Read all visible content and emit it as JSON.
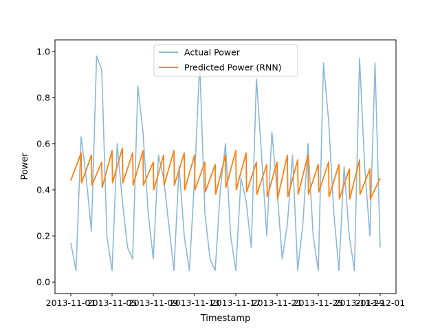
{
  "chart_data": {
    "type": "line",
    "xlabel": "Timestamp",
    "ylabel": "Power",
    "xlim": [
      "2013-11-01",
      "2013-12-01"
    ],
    "ylim": [
      -0.05,
      1.05
    ],
    "x_ticks": [
      "2013-11-01",
      "2013-11-05",
      "2013-11-09",
      "2013-11-13",
      "2013-11-17",
      "2013-11-21",
      "2013-11-25",
      "2013-11-29",
      "2013-12-01"
    ],
    "y_ticks": [
      "0.0",
      "0.2",
      "0.4",
      "0.6",
      "0.8",
      "1.0"
    ],
    "legend_position": "top-center",
    "series": [
      {
        "name": "Actual Power",
        "color": "#8ab8d8",
        "x": [
          "2013-11-01",
          "2013-11-01T12",
          "2013-11-02",
          "2013-11-02T12",
          "2013-11-03",
          "2013-11-03T12",
          "2013-11-04",
          "2013-11-04T12",
          "2013-11-05",
          "2013-11-05T12",
          "2013-11-06",
          "2013-11-06T12",
          "2013-11-07",
          "2013-11-07T12",
          "2013-11-08",
          "2013-11-08T12",
          "2013-11-09",
          "2013-11-09T12",
          "2013-11-10",
          "2013-11-10T12",
          "2013-11-11",
          "2013-11-11T12",
          "2013-11-12",
          "2013-11-12T12",
          "2013-11-13",
          "2013-11-13T12",
          "2013-11-14",
          "2013-11-14T12",
          "2013-11-15",
          "2013-11-15T12",
          "2013-11-16",
          "2013-11-16T12",
          "2013-11-17",
          "2013-11-17T12",
          "2013-11-18",
          "2013-11-18T12",
          "2013-11-19",
          "2013-11-19T12",
          "2013-11-20",
          "2013-11-20T12",
          "2013-11-21",
          "2013-11-21T12",
          "2013-11-22",
          "2013-11-22T12",
          "2013-11-23",
          "2013-11-23T12",
          "2013-11-24",
          "2013-11-24T12",
          "2013-11-25",
          "2013-11-25T12",
          "2013-11-26",
          "2013-11-26T12",
          "2013-11-27",
          "2013-11-27T12",
          "2013-11-28",
          "2013-11-28T12",
          "2013-11-29",
          "2013-11-29T12",
          "2013-11-30",
          "2013-11-30T12",
          "2013-12-01"
        ],
        "values": [
          0.17,
          0.05,
          0.63,
          0.45,
          0.22,
          0.98,
          0.92,
          0.2,
          0.05,
          0.6,
          0.35,
          0.15,
          0.1,
          0.85,
          0.65,
          0.3,
          0.1,
          0.55,
          0.45,
          0.25,
          0.05,
          0.5,
          0.2,
          0.05,
          0.45,
          0.95,
          0.3,
          0.1,
          0.05,
          0.4,
          0.6,
          0.2,
          0.05,
          0.45,
          0.35,
          0.15,
          0.88,
          0.55,
          0.2,
          0.65,
          0.4,
          0.1,
          0.25,
          0.55,
          0.05,
          0.25,
          0.6,
          0.2,
          0.05,
          0.95,
          0.7,
          0.3,
          0.05,
          0.5,
          0.2,
          0.05,
          0.97,
          0.5,
          0.2,
          0.95,
          0.15
        ]
      },
      {
        "name": "Predicted Power (RNN)",
        "color": "#ff7f0e",
        "x": [
          "2013-11-01",
          "2013-11-02",
          "2013-11-02T01",
          "2013-11-03",
          "2013-11-03T01",
          "2013-11-04",
          "2013-11-04T01",
          "2013-11-05",
          "2013-11-05T01",
          "2013-11-06",
          "2013-11-06T01",
          "2013-11-07",
          "2013-11-07T01",
          "2013-11-08",
          "2013-11-08T01",
          "2013-11-09",
          "2013-11-09T01",
          "2013-11-10",
          "2013-11-10T01",
          "2013-11-11",
          "2013-11-11T01",
          "2013-11-12",
          "2013-11-12T01",
          "2013-11-13",
          "2013-11-13T01",
          "2013-11-14",
          "2013-11-14T01",
          "2013-11-15",
          "2013-11-15T01",
          "2013-11-16",
          "2013-11-16T01",
          "2013-11-17",
          "2013-11-17T01",
          "2013-11-18",
          "2013-11-18T01",
          "2013-11-19",
          "2013-11-19T01",
          "2013-11-20",
          "2013-11-20T01",
          "2013-11-21",
          "2013-11-21T01",
          "2013-11-22",
          "2013-11-22T01",
          "2013-11-23",
          "2013-11-23T01",
          "2013-11-24",
          "2013-11-24T01",
          "2013-11-25",
          "2013-11-25T01",
          "2013-11-26",
          "2013-11-26T01",
          "2013-11-27",
          "2013-11-27T01",
          "2013-11-28",
          "2013-11-28T01",
          "2013-11-29",
          "2013-11-29T01",
          "2013-11-30",
          "2013-11-30T01",
          "2013-12-01"
        ],
        "values": [
          0.44,
          0.56,
          0.43,
          0.55,
          0.42,
          0.52,
          0.41,
          0.57,
          0.43,
          0.58,
          0.43,
          0.56,
          0.42,
          0.57,
          0.42,
          0.52,
          0.4,
          0.55,
          0.42,
          0.57,
          0.42,
          0.56,
          0.4,
          0.55,
          0.4,
          0.52,
          0.39,
          0.51,
          0.38,
          0.55,
          0.41,
          0.57,
          0.4,
          0.56,
          0.39,
          0.52,
          0.38,
          0.51,
          0.37,
          0.52,
          0.36,
          0.55,
          0.37,
          0.53,
          0.38,
          0.55,
          0.38,
          0.51,
          0.39,
          0.52,
          0.37,
          0.51,
          0.36,
          0.49,
          0.36,
          0.53,
          0.38,
          0.49,
          0.36,
          0.45
        ]
      }
    ]
  }
}
